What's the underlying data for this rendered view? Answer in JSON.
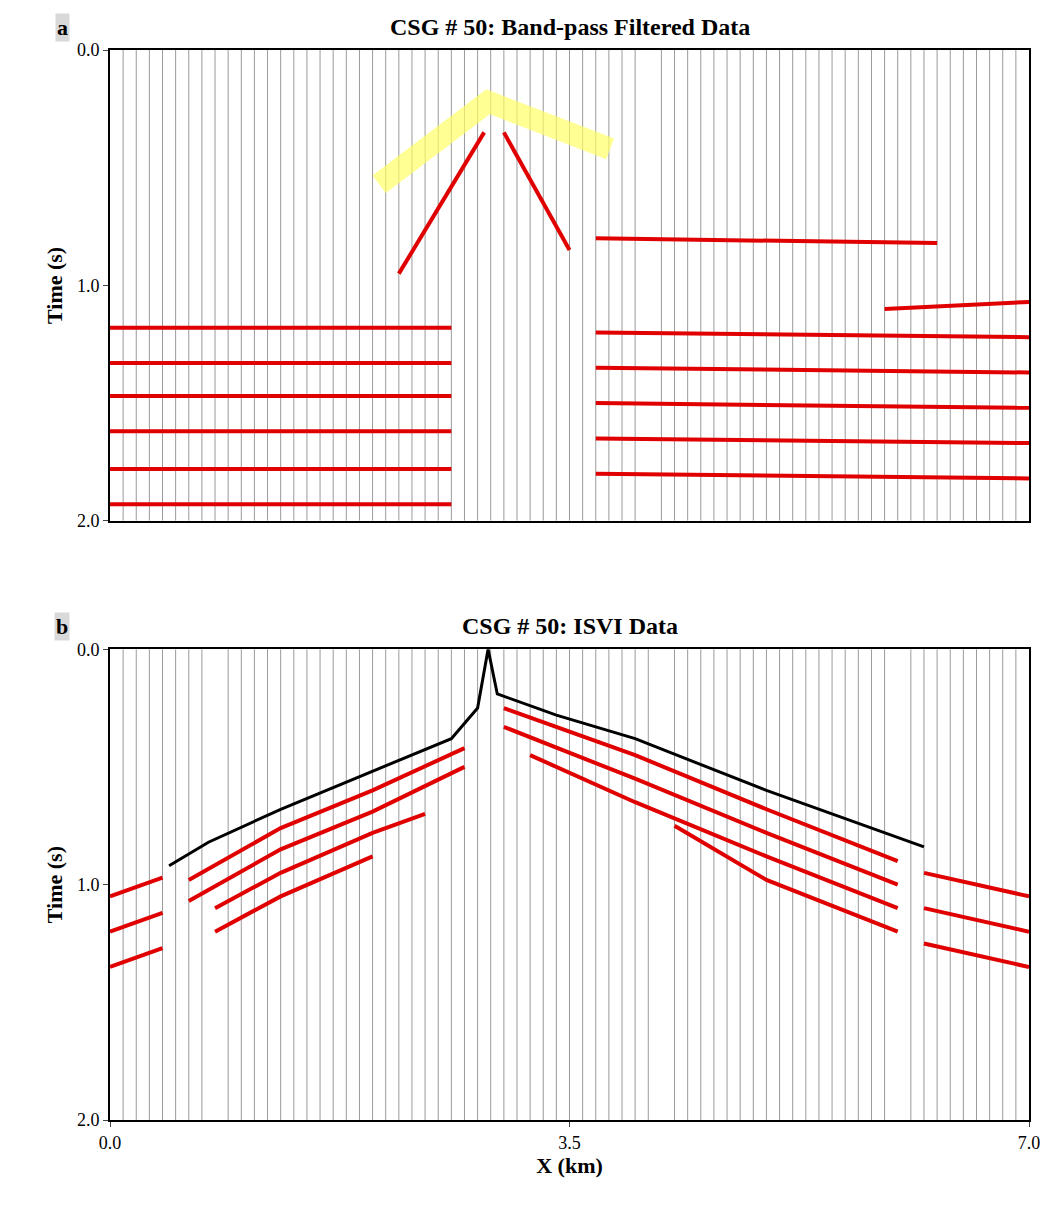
{
  "chart_data": [
    {
      "type": "line",
      "panel": "a",
      "title": "CSG # 50: Band-pass Filtered Data",
      "y_label": "Time (s)",
      "xlim": [
        0,
        7
      ],
      "ylim": [
        2,
        0
      ],
      "yticks": [
        {
          "value": 0,
          "label": "0.0"
        },
        {
          "value": 1,
          "label": "1.0"
        },
        {
          "value": 2,
          "label": "2.0"
        }
      ],
      "tick_labels": "y",
      "trace_x": [
        0.1,
        0.2,
        0.3,
        0.4,
        0.5,
        0.6,
        0.7,
        0.8,
        0.9,
        1.0,
        1.1,
        1.2,
        1.3,
        1.4,
        1.5,
        1.6,
        1.7,
        1.8,
        1.9,
        2.0,
        2.1,
        2.2,
        2.3,
        2.4,
        2.5,
        2.6,
        2.7,
        2.8,
        2.9,
        3.0,
        3.1,
        3.2,
        3.3,
        3.4,
        3.5,
        3.6,
        3.7,
        3.8,
        3.9,
        4.0,
        4.2,
        4.3,
        4.4,
        4.5,
        4.6,
        4.7,
        4.8,
        4.9,
        5.0,
        5.1,
        5.2,
        5.3,
        5.4,
        5.5,
        5.6,
        5.7,
        5.8,
        5.9,
        6.0,
        6.1,
        6.2,
        6.3,
        6.4,
        6.5,
        6.6,
        6.7,
        6.8,
        6.9
      ],
      "series": [
        {
          "color": "#e00000",
          "line_style": "thick",
          "x": [
            0.0,
            2.6
          ],
          "values": [
            1.18,
            1.18
          ]
        },
        {
          "color": "#e00000",
          "line_style": "thick",
          "x": [
            0.0,
            2.6
          ],
          "values": [
            1.33,
            1.33
          ]
        },
        {
          "color": "#e00000",
          "line_style": "thick",
          "x": [
            0.0,
            2.6
          ],
          "values": [
            1.47,
            1.47
          ]
        },
        {
          "color": "#e00000",
          "line_style": "thick",
          "x": [
            0.0,
            2.6
          ],
          "values": [
            1.62,
            1.62
          ]
        },
        {
          "color": "#e00000",
          "line_style": "thick",
          "x": [
            0.0,
            2.6
          ],
          "values": [
            1.78,
            1.78
          ]
        },
        {
          "color": "#e00000",
          "line_style": "thick",
          "x": [
            0.0,
            2.6
          ],
          "values": [
            1.93,
            1.93
          ]
        },
        {
          "color": "#e00000",
          "line_style": "thick",
          "x": [
            2.2,
            2.85
          ],
          "values": [
            0.95,
            0.35
          ]
        },
        {
          "color": "#e00000",
          "line_style": "thick",
          "x": [
            3.0,
            3.5
          ],
          "values": [
            0.35,
            0.85
          ]
        },
        {
          "color": "#e00000",
          "line_style": "thick",
          "x": [
            3.7,
            6.3
          ],
          "values": [
            0.8,
            0.82
          ]
        },
        {
          "color": "#e00000",
          "line_style": "thick",
          "x": [
            5.9,
            7.0
          ],
          "values": [
            1.1,
            1.07
          ]
        },
        {
          "color": "#e00000",
          "line_style": "thick",
          "x": [
            3.7,
            7.0
          ],
          "values": [
            1.2,
            1.22
          ]
        },
        {
          "color": "#e00000",
          "line_style": "thick",
          "x": [
            3.7,
            7.0
          ],
          "values": [
            1.35,
            1.37
          ]
        },
        {
          "color": "#e00000",
          "line_style": "thick",
          "x": [
            3.7,
            7.0
          ],
          "values": [
            1.5,
            1.52
          ]
        },
        {
          "color": "#e00000",
          "line_style": "thick",
          "x": [
            3.7,
            7.0
          ],
          "values": [
            1.65,
            1.67
          ]
        },
        {
          "color": "#e00000",
          "line_style": "thick",
          "x": [
            3.7,
            7.0
          ],
          "values": [
            1.8,
            1.82
          ]
        },
        {
          "color": "#ffff66",
          "line_style": "band",
          "x": [
            2.05,
            2.88,
            3.81
          ],
          "values": [
            0.57,
            0.22,
            0.42
          ]
        }
      ]
    },
    {
      "type": "line",
      "panel": "b",
      "title": "CSG # 50: ISVI Data",
      "y_label": "Time (s)",
      "x_label": "X (km)",
      "xlim": [
        0,
        7
      ],
      "ylim": [
        2,
        0
      ],
      "xticks": [
        {
          "value": 0,
          "label": "0.0"
        },
        3.5,
        {
          "value": 7,
          "label": "7.0"
        }
      ],
      "yticks": [
        {
          "value": 0,
          "label": "0.0"
        },
        {
          "value": 1,
          "label": "1.0"
        },
        {
          "value": 2,
          "label": "2.0"
        }
      ],
      "trace_x": [
        0.1,
        0.2,
        0.3,
        0.4,
        0.5,
        0.6,
        0.7,
        0.9,
        1.0,
        1.1,
        1.2,
        1.3,
        1.4,
        1.5,
        1.6,
        1.7,
        1.8,
        1.9,
        2.0,
        2.1,
        2.2,
        2.3,
        2.4,
        2.5,
        2.6,
        2.7,
        2.8,
        2.9,
        3.0,
        3.1,
        3.2,
        3.3,
        3.4,
        3.5,
        3.6,
        3.7,
        3.8,
        3.9,
        4.0,
        4.1,
        4.3,
        4.4,
        4.5,
        4.6,
        4.7,
        4.8,
        4.9,
        5.0,
        5.1,
        5.2,
        5.3,
        5.4,
        5.5,
        5.6,
        5.7,
        5.8,
        5.9,
        6.1,
        6.2,
        6.3,
        6.4,
        6.5,
        6.6,
        6.7,
        6.8,
        6.9
      ],
      "series": [
        {
          "color": "#e00000",
          "line_style": "thick",
          "x": [
            0.6,
            1.3,
            2.0,
            2.7
          ],
          "values": [
            0.98,
            0.76,
            0.6,
            0.42
          ]
        },
        {
          "color": "#e00000",
          "line_style": "thick",
          "x": [
            0.6,
            1.3,
            2.0,
            2.7
          ],
          "values": [
            1.07,
            0.85,
            0.69,
            0.5
          ]
        },
        {
          "color": "#e00000",
          "line_style": "thick",
          "x": [
            0.8,
            1.3,
            2.0,
            2.4
          ],
          "values": [
            1.1,
            0.95,
            0.78,
            0.7
          ]
        },
        {
          "color": "#e00000",
          "line_style": "thick",
          "x": [
            0.8,
            1.3,
            2.0
          ],
          "values": [
            1.2,
            1.05,
            0.88
          ]
        },
        {
          "color": "#e00000",
          "line_style": "thick",
          "x": [
            0.0,
            0.4
          ],
          "values": [
            1.05,
            0.97
          ]
        },
        {
          "color": "#e00000",
          "line_style": "thick",
          "x": [
            0.0,
            0.4
          ],
          "values": [
            1.2,
            1.12
          ]
        },
        {
          "color": "#e00000",
          "line_style": "thick",
          "x": [
            0.0,
            0.4
          ],
          "values": [
            1.35,
            1.27
          ]
        },
        {
          "color": "#e00000",
          "line_style": "thick",
          "x": [
            3.0,
            4.0,
            5.0,
            6.0
          ],
          "values": [
            0.25,
            0.45,
            0.68,
            0.9
          ]
        },
        {
          "color": "#e00000",
          "line_style": "thick",
          "x": [
            3.0,
            4.0,
            5.0,
            6.0
          ],
          "values": [
            0.33,
            0.55,
            0.78,
            1.0
          ]
        },
        {
          "color": "#e00000",
          "line_style": "thick",
          "x": [
            3.2,
            4.0,
            5.0,
            6.0
          ],
          "values": [
            0.45,
            0.65,
            0.88,
            1.1
          ]
        },
        {
          "color": "#e00000",
          "line_style": "thick",
          "x": [
            4.3,
            5.0,
            6.0
          ],
          "values": [
            0.75,
            0.98,
            1.2
          ]
        },
        {
          "color": "#e00000",
          "line_style": "thick",
          "x": [
            6.2,
            7.0
          ],
          "values": [
            0.95,
            1.05
          ]
        },
        {
          "color": "#e00000",
          "line_style": "thick",
          "x": [
            6.2,
            7.0
          ],
          "values": [
            1.1,
            1.2
          ]
        },
        {
          "color": "#e00000",
          "line_style": "thick",
          "x": [
            6.2,
            7.0
          ],
          "values": [
            1.25,
            1.35
          ]
        },
        {
          "color": "#000000",
          "line_style": "solid",
          "x": [
            0.45,
            0.75,
            1.3,
            2.0,
            2.6,
            2.8,
            2.88,
            2.95,
            3.4,
            4.0,
            5.0,
            5.6,
            6.2
          ],
          "values": [
            0.92,
            0.82,
            0.68,
            0.52,
            0.38,
            0.25,
            0.0,
            0.19,
            0.28,
            0.38,
            0.6,
            0.72,
            0.84
          ]
        }
      ]
    }
  ]
}
